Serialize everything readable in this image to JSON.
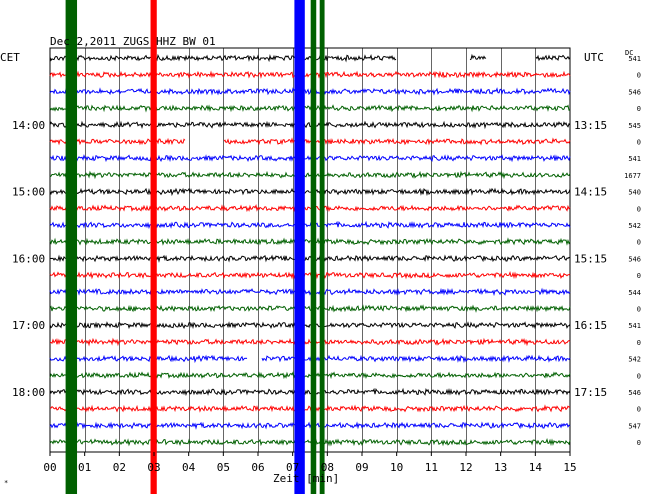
{
  "chart_data": {
    "type": "line",
    "title": "Dec 2,2011  ZUGS HHZ BW 01",
    "left_label": "CET",
    "right_label": "UTC",
    "right_column_header": "DC",
    "xlabel": "Zeit [min]",
    "xlim": [
      0,
      15
    ],
    "xticks": [
      "00",
      "01",
      "02",
      "03",
      "04",
      "05",
      "06",
      "07",
      "08",
      "09",
      "10",
      "11",
      "12",
      "13",
      "14",
      "15"
    ],
    "cet_labels": [
      {
        "text": "14:00",
        "trace": 4
      },
      {
        "text": "15:00",
        "trace": 8
      },
      {
        "text": "16:00",
        "trace": 12
      },
      {
        "text": "17:00",
        "trace": 16
      },
      {
        "text": "18:00",
        "trace": 20
      }
    ],
    "utc_labels": [
      {
        "text": "13:15",
        "trace": 4
      },
      {
        "text": "14:15",
        "trace": 8
      },
      {
        "text": "15:15",
        "trace": 12
      },
      {
        "text": "16:15",
        "trace": 16
      },
      {
        "text": "17:15",
        "trace": 20
      }
    ],
    "trace_colors": [
      "#000000",
      "#ff0000",
      "#0000ff",
      "#006000"
    ],
    "dc_values": [
      "541",
      "0",
      "546",
      "0",
      "545",
      "0",
      "541",
      "1677",
      "540",
      "0",
      "542",
      "0",
      "546",
      "0",
      "544",
      "0",
      "541",
      "0",
      "542",
      "0",
      "546",
      "0",
      "547",
      "0"
    ],
    "bursts": [
      {
        "start": 0.45,
        "end": 0.62,
        "color": "#006000",
        "traces": "all"
      },
      {
        "start": 0.62,
        "end": 0.78,
        "color": "#006000",
        "traces": "all"
      },
      {
        "start": 2.9,
        "end": 3.08,
        "color": "#ff0000",
        "traces": "all"
      },
      {
        "start": 7.05,
        "end": 7.35,
        "color": "#0000ff",
        "traces": "all"
      },
      {
        "start": 7.52,
        "end": 7.68,
        "color": "#006000",
        "traces": "all"
      },
      {
        "start": 7.78,
        "end": 7.92,
        "color": "#006000",
        "traces": "all"
      }
    ],
    "gaps": [
      {
        "trace": 0,
        "start": 10.0,
        "end": 12.1
      },
      {
        "trace": 0,
        "start": 12.6,
        "end": 14.0
      },
      {
        "trace": 5,
        "start": 3.9,
        "end": 5.0
      },
      {
        "trace": 18,
        "start": 5.7,
        "end": 6.1
      }
    ],
    "trace_count": 24,
    "trace_minutes": 15,
    "grid": "vertical lines each minute"
  },
  "footer_mark": "*"
}
